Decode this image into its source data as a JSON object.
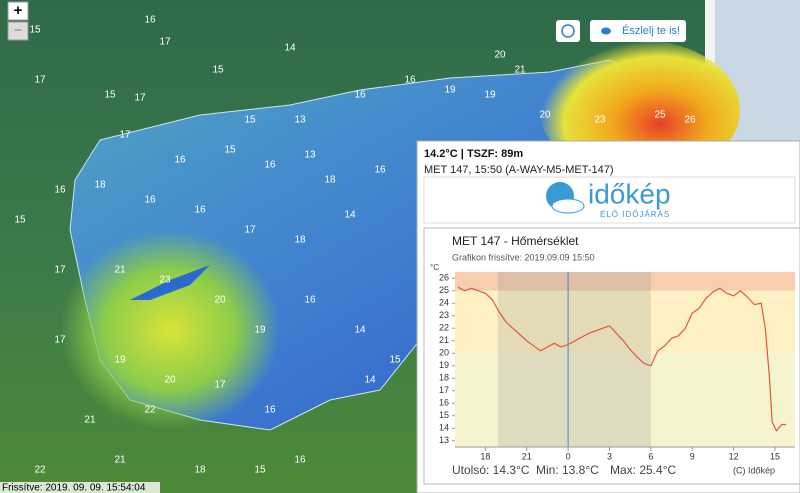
{
  "map": {
    "zoom_in": "+",
    "zoom_out": "−",
    "report_button": "Észlelj te is!",
    "updated": "Frissítve: 2019. 09. 09. 15:54:04",
    "stations": [
      16,
      15,
      17,
      14,
      15,
      17,
      15,
      17,
      15,
      13,
      16,
      16,
      19,
      19,
      21,
      20,
      20,
      23,
      25,
      26,
      17,
      16,
      15,
      16,
      13,
      18,
      16,
      16,
      18,
      16,
      16,
      17,
      18,
      14,
      15,
      17,
      21,
      23,
      20,
      19,
      16,
      14,
      17,
      19,
      20,
      17,
      16,
      22,
      21,
      16,
      22,
      21,
      18,
      15,
      14,
      15
    ]
  },
  "popup": {
    "reading": "14.2°C | TSZF: 89m",
    "station": "MET 147, 15:50 (A-WAY-M5-MET-147)",
    "logo": "időkép",
    "logo_tagline": "ÉLŐ IDŐJÁRÁS"
  },
  "chart_data": {
    "type": "line",
    "title": "MET 147 - Hőmérséklet",
    "subtitle": "Grafikon frissítve: 2019.09.09 15:50",
    "y_unit": "°C",
    "x": [
      -8,
      -7.5,
      -7,
      -6.5,
      -6,
      -5.5,
      -5,
      -4.5,
      -4,
      -3.5,
      -3,
      -2.5,
      -2,
      -1.5,
      -1,
      -0.5,
      0,
      0.5,
      1,
      1.5,
      2,
      2.5,
      3,
      3.5,
      4,
      4.5,
      5,
      5.5,
      6,
      6.5,
      7,
      7.5,
      8,
      8.5,
      9,
      9.5,
      10,
      10.5,
      11,
      11.5,
      12,
      12.5,
      13,
      13.5,
      14,
      14.3,
      14.6,
      14.8,
      15.1,
      15.5,
      15.8
    ],
    "values": [
      25.3,
      25.0,
      25.2,
      25.0,
      24.8,
      24.3,
      23.3,
      22.5,
      22.0,
      21.5,
      21.0,
      20.6,
      20.2,
      20.5,
      20.8,
      20.5,
      20.7,
      21.0,
      21.3,
      21.6,
      21.8,
      22.0,
      22.2,
      21.6,
      21.0,
      20.3,
      19.7,
      19.2,
      19.0,
      20.2,
      20.6,
      21.2,
      21.4,
      22.0,
      23.2,
      23.6,
      24.4,
      24.9,
      25.2,
      24.8,
      24.6,
      25.0,
      24.5,
      23.9,
      24.0,
      22.0,
      18.0,
      14.5,
      13.8,
      14.3,
      14.3
    ],
    "color": "#e05a3a",
    "xlim": [
      -8.2,
      16.45
    ],
    "ylim": [
      12.5,
      26.5
    ],
    "xticks": [
      {
        "value": -6,
        "label": "18"
      },
      {
        "value": -3,
        "label": "21"
      },
      0,
      3,
      6,
      9,
      12,
      15
    ],
    "yticks": [
      13,
      14,
      15,
      16,
      17,
      18,
      19,
      20,
      21,
      22,
      23,
      24,
      25,
      26
    ],
    "stats": [
      "Utolsó: 14.3°C",
      "Min: 13.8°C",
      "Max: 25.4°C"
    ],
    "copyright": "(C) Időkép"
  }
}
